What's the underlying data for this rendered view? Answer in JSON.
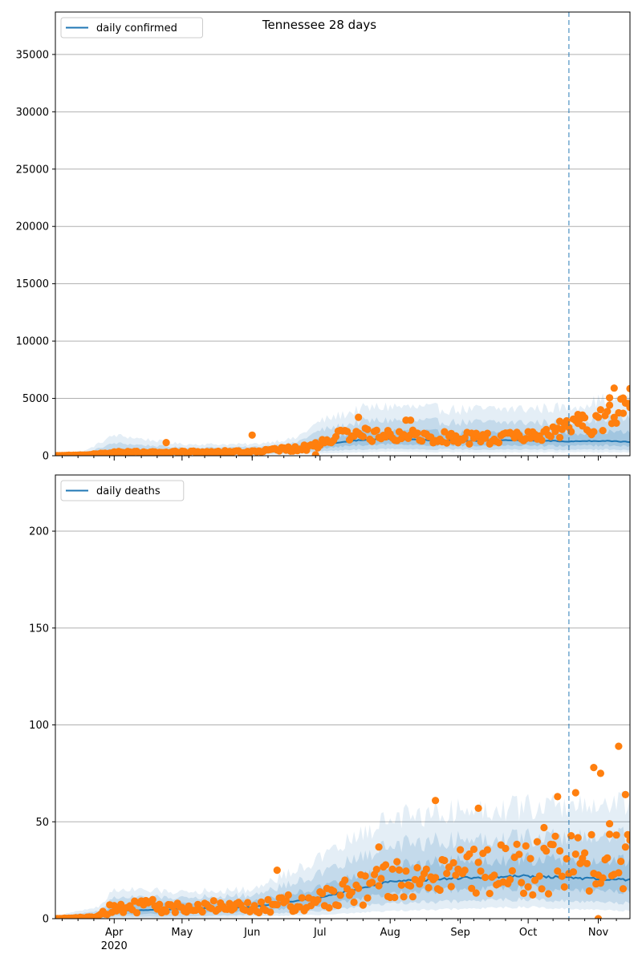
{
  "title": "Tennessee 28 days",
  "colors": {
    "line": "#1f77b4",
    "points": "#ff7f0e",
    "band": "#1f77b4",
    "grid": "#b0b0b0",
    "frame": "#000000"
  },
  "chart_data": [
    {
      "type": "line",
      "name": "confirmed",
      "legend_label": "daily confirmed",
      "legend_position": "top-left",
      "grid": "y",
      "x_start": "2020-03-06",
      "x_end": "2020-11-15",
      "cutoff_date": "2020-10-19",
      "ylim": [
        0,
        38700
      ],
      "yticks": [
        0,
        5000,
        10000,
        15000,
        20000,
        25000,
        30000,
        35000
      ],
      "xticks": [
        {
          "date": "2020-04-01",
          "label": "Apr",
          "sublabel": "2020"
        },
        {
          "date": "2020-05-01",
          "label": "May"
        },
        {
          "date": "2020-06-01",
          "label": "Jun"
        },
        {
          "date": "2020-07-01",
          "label": "Jul"
        },
        {
          "date": "2020-08-01",
          "label": "Aug"
        },
        {
          "date": "2020-09-01",
          "label": "Sep"
        },
        {
          "date": "2020-10-01",
          "label": "Oct"
        },
        {
          "date": "2020-11-01",
          "label": "Nov"
        }
      ],
      "model_anchors": [
        {
          "date": "2020-03-06",
          "mean": 30,
          "lo1": 20,
          "hi1": 40,
          "lo2": 10,
          "hi2": 60,
          "lo3": 5,
          "hi3": 90
        },
        {
          "date": "2020-03-20",
          "mean": 80,
          "lo1": 50,
          "hi1": 150,
          "lo2": 30,
          "hi2": 300,
          "lo3": 10,
          "hi3": 500
        },
        {
          "date": "2020-04-01",
          "mean": 350,
          "lo1": 200,
          "hi1": 600,
          "lo2": 100,
          "hi2": 1100,
          "lo3": 50,
          "hi3": 1800
        },
        {
          "date": "2020-05-01",
          "mean": 300,
          "lo1": 200,
          "hi1": 450,
          "lo2": 120,
          "hi2": 700,
          "lo3": 60,
          "hi3": 1000
        },
        {
          "date": "2020-06-01",
          "mean": 350,
          "lo1": 250,
          "hi1": 500,
          "lo2": 150,
          "hi2": 750,
          "lo3": 80,
          "hi3": 1000
        },
        {
          "date": "2020-06-20",
          "mean": 500,
          "lo1": 350,
          "hi1": 750,
          "lo2": 220,
          "hi2": 1100,
          "lo3": 120,
          "hi3": 1500
        },
        {
          "date": "2020-07-01",
          "mean": 950,
          "lo1": 650,
          "hi1": 1500,
          "lo2": 400,
          "hi2": 2200,
          "lo3": 200,
          "hi3": 3000
        },
        {
          "date": "2020-07-20",
          "mean": 1400,
          "lo1": 950,
          "hi1": 2100,
          "lo2": 550,
          "hi2": 3000,
          "lo3": 300,
          "hi3": 4100
        },
        {
          "date": "2020-08-01",
          "mean": 1450,
          "lo1": 1000,
          "hi1": 2200,
          "lo2": 600,
          "hi2": 3100,
          "lo3": 350,
          "hi3": 4300
        },
        {
          "date": "2020-09-01",
          "mean": 1300,
          "lo1": 900,
          "hi1": 2000,
          "lo2": 550,
          "hi2": 2900,
          "lo3": 300,
          "hi3": 4000
        },
        {
          "date": "2020-10-01",
          "mean": 1350,
          "lo1": 900,
          "hi1": 2000,
          "lo2": 550,
          "hi2": 2900,
          "lo3": 300,
          "hi3": 4100
        },
        {
          "date": "2020-10-19",
          "mean": 1250,
          "lo1": 850,
          "hi1": 1950,
          "lo2": 500,
          "hi2": 2900,
          "lo3": 300,
          "hi3": 4200
        },
        {
          "date": "2020-11-05",
          "mean": 1300,
          "lo1": 900,
          "hi1": 2100,
          "lo2": 550,
          "hi2": 3300,
          "lo3": 300,
          "hi3": 5000
        },
        {
          "date": "2020-11-15",
          "mean": 1200,
          "lo1": 850,
          "hi1": 2000,
          "lo2": 500,
          "hi2": 3200,
          "lo3": 300,
          "hi3": 4800
        }
      ],
      "observed_anchors": [
        {
          "date": "2020-03-06",
          "value": 10
        },
        {
          "date": "2020-03-20",
          "value": 60
        },
        {
          "date": "2020-04-01",
          "value": 300
        },
        {
          "date": "2020-05-01",
          "value": 300
        },
        {
          "date": "2020-06-01",
          "value": 350
        },
        {
          "date": "2020-06-25",
          "value": 700
        },
        {
          "date": "2020-07-10",
          "value": 1700
        },
        {
          "date": "2020-08-01",
          "value": 2000
        },
        {
          "date": "2020-09-01",
          "value": 1500
        },
        {
          "date": "2020-10-01",
          "value": 1600
        },
        {
          "date": "2020-10-19",
          "value": 2300
        },
        {
          "date": "2020-11-01",
          "value": 2900
        },
        {
          "date": "2020-11-15",
          "value": 4200
        }
      ],
      "observed_outliers": [
        {
          "date": "2020-04-24",
          "value": 1150
        },
        {
          "date": "2020-06-01",
          "value": 1800
        },
        {
          "date": "2020-06-29",
          "value": 80
        },
        {
          "date": "2020-07-18",
          "value": 3350
        },
        {
          "date": "2020-08-08",
          "value": 3100
        },
        {
          "date": "2020-08-10",
          "value": 3100
        },
        {
          "date": "2020-10-15",
          "value": 3000
        },
        {
          "date": "2020-10-23",
          "value": 3600
        },
        {
          "date": "2020-10-25",
          "value": 3550
        },
        {
          "date": "2020-11-06",
          "value": 5050
        },
        {
          "date": "2020-11-08",
          "value": 5900
        },
        {
          "date": "2020-11-12",
          "value": 3700
        },
        {
          "date": "2020-11-15",
          "value": 5850
        }
      ],
      "noise": 0.35
    },
    {
      "type": "line",
      "name": "deaths",
      "legend_label": "daily deaths",
      "legend_position": "top-left",
      "grid": "y",
      "x_start": "2020-03-06",
      "x_end": "2020-11-15",
      "cutoff_date": "2020-10-19",
      "ylim": [
        0,
        229
      ],
      "yticks": [
        0,
        50,
        100,
        150,
        200
      ],
      "xticks": [
        {
          "date": "2020-04-01",
          "label": "Apr",
          "sublabel": "2020"
        },
        {
          "date": "2020-05-01",
          "label": "May"
        },
        {
          "date": "2020-06-01",
          "label": "Jun"
        },
        {
          "date": "2020-07-01",
          "label": "Jul"
        },
        {
          "date": "2020-08-01",
          "label": "Aug"
        },
        {
          "date": "2020-09-01",
          "label": "Sep"
        },
        {
          "date": "2020-10-01",
          "label": "Oct"
        },
        {
          "date": "2020-11-01",
          "label": "Nov"
        }
      ],
      "model_anchors": [
        {
          "date": "2020-03-06",
          "mean": 0.2,
          "lo1": 0,
          "hi1": 0.5,
          "lo2": 0,
          "hi2": 1,
          "lo3": 0,
          "hi3": 1.5
        },
        {
          "date": "2020-03-25",
          "mean": 1,
          "lo1": 0.5,
          "hi1": 2,
          "lo2": 0,
          "hi2": 4,
          "lo3": 0,
          "hi3": 6
        },
        {
          "date": "2020-04-01",
          "mean": 4,
          "lo1": 2,
          "hi1": 7,
          "lo2": 1,
          "hi2": 11,
          "lo3": 0,
          "hi3": 15
        },
        {
          "date": "2020-05-01",
          "mean": 5,
          "lo1": 3,
          "hi1": 8,
          "lo2": 1,
          "hi2": 11,
          "lo3": 0,
          "hi3": 14
        },
        {
          "date": "2020-06-01",
          "mean": 6,
          "lo1": 3.5,
          "hi1": 9,
          "lo2": 2,
          "hi2": 12,
          "lo3": 1,
          "hi3": 15
        },
        {
          "date": "2020-07-01",
          "mean": 11,
          "lo1": 7,
          "hi1": 16,
          "lo2": 4,
          "hi2": 23,
          "lo3": 2,
          "hi3": 31
        },
        {
          "date": "2020-08-01",
          "mean": 19,
          "lo1": 13,
          "hi1": 27,
          "lo2": 8,
          "hi2": 38,
          "lo3": 4,
          "hi3": 52
        },
        {
          "date": "2020-09-01",
          "mean": 21,
          "lo1": 15,
          "hi1": 30,
          "lo2": 9,
          "hi2": 41,
          "lo3": 5,
          "hi3": 56
        },
        {
          "date": "2020-10-01",
          "mean": 22,
          "lo1": 16,
          "hi1": 31,
          "lo2": 10,
          "hi2": 42,
          "lo3": 6,
          "hi3": 58
        },
        {
          "date": "2020-10-19",
          "mean": 21,
          "lo1": 15,
          "hi1": 30,
          "lo2": 9,
          "hi2": 42,
          "lo3": 5,
          "hi3": 58
        },
        {
          "date": "2020-11-15",
          "mean": 20,
          "lo1": 14,
          "hi1": 30,
          "lo2": 8,
          "hi2": 43,
          "lo3": 4,
          "hi3": 60
        }
      ],
      "observed_anchors": [
        {
          "date": "2020-03-06",
          "value": 0
        },
        {
          "date": "2020-03-25",
          "value": 1
        },
        {
          "date": "2020-04-01",
          "value": 7
        },
        {
          "date": "2020-05-01",
          "value": 6
        },
        {
          "date": "2020-06-01",
          "value": 6
        },
        {
          "date": "2020-07-01",
          "value": 10
        },
        {
          "date": "2020-08-01",
          "value": 19
        },
        {
          "date": "2020-09-01",
          "value": 24
        },
        {
          "date": "2020-10-01",
          "value": 27
        },
        {
          "date": "2020-10-19",
          "value": 28
        },
        {
          "date": "2020-11-15",
          "value": 30
        }
      ],
      "observed_outliers": [
        {
          "date": "2020-06-12",
          "value": 25
        },
        {
          "date": "2020-07-27",
          "value": 37
        },
        {
          "date": "2020-08-21",
          "value": 61
        },
        {
          "date": "2020-09-09",
          "value": 57
        },
        {
          "date": "2020-10-08",
          "value": 47
        },
        {
          "date": "2020-10-14",
          "value": 63
        },
        {
          "date": "2020-10-22",
          "value": 65
        },
        {
          "date": "2020-10-30",
          "value": 78
        },
        {
          "date": "2020-11-02",
          "value": 75
        },
        {
          "date": "2020-11-06",
          "value": 49
        },
        {
          "date": "2020-11-10",
          "value": 89
        },
        {
          "date": "2020-11-13",
          "value": 64
        },
        {
          "date": "2020-11-01",
          "value": 0
        }
      ],
      "noise": 0.55
    }
  ]
}
